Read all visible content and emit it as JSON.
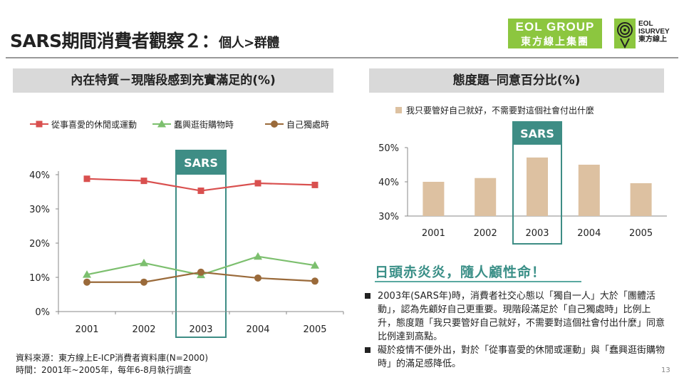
{
  "title": {
    "main": "SARS期間消費者觀察２：",
    "sub": "個人>群體"
  },
  "logos": {
    "eol_top": "EOL GROUP",
    "eol_bottom": "東方線上集團",
    "isurvey_line1": "EOL",
    "isurvey_line2": "ISURVEY",
    "isurvey_line3": "東方線上"
  },
  "left_header": "內在特質－現階段感到充實滿足的(%)",
  "right_header": "態度題─同意百分比(%)",
  "sars_label": "SARS",
  "colors": {
    "red": "#d9504f",
    "green": "#7cbf6e",
    "brown": "#9a6a3a",
    "bar": "#ddc1a1",
    "teal": "#3e8d85"
  },
  "chart_data": [
    {
      "type": "line",
      "x": [
        "2001",
        "2002",
        "2003",
        "2004",
        "2005"
      ],
      "series": [
        {
          "name": "從事喜愛的休閒或運動",
          "values": [
            38.8,
            38.2,
            35.3,
            37.5,
            37.0
          ],
          "color": "#d9504f",
          "marker": "square"
        },
        {
          "name": "蠢興逛街購物時",
          "values": [
            10.8,
            14.2,
            10.7,
            16.1,
            13.5
          ],
          "color": "#7cbf6e",
          "marker": "triangle"
        },
        {
          "name": "自己獨處時",
          "values": [
            8.6,
            8.6,
            11.5,
            9.8,
            8.9
          ],
          "color": "#9a6a3a",
          "marker": "circle"
        }
      ],
      "ylim": [
        0,
        40
      ],
      "yticks": [
        "0%",
        "10%",
        "20%",
        "30%",
        "40%"
      ],
      "legend": "top",
      "highlight": "2003",
      "grid": false
    },
    {
      "type": "bar",
      "categories": [
        "2001",
        "2002",
        "2003",
        "2004",
        "2005"
      ],
      "series": [
        {
          "name": "我只要管好自己就好，不需要對這個社會付出什麼",
          "values": [
            40.0,
            41.1,
            47.1,
            45.0,
            39.6
          ],
          "color": "#ddc1a1"
        }
      ],
      "ylim": [
        30,
        50
      ],
      "yticks": [
        "30%",
        "40%",
        "50%"
      ],
      "legend": "top",
      "highlight": "2003",
      "grid": false
    }
  ],
  "slogan": "日頭赤炎炎，隨人顧性命！",
  "bullets": [
    "2003年(SARS年)時，消費者社交心態以「獨自一人」大於「團體活動」，認為先顧好自己更重要。現階段滿足於「自己獨處時」比例上升，態度題「我只要管好自己就好，不需要對這個社會付出什麼」同意比例達到高點。",
    "礙於疫情不便外出，對於「從事喜愛的休閒或運動」與「蠢興逛街購物時」的滿足感降低。"
  ],
  "source": {
    "line1": "資料來源：東方線上E-ICP消費者資料庫(N=2000)",
    "line2": "時間：2001年~2005年，每年6-8月執行調查"
  },
  "page_number": "13"
}
